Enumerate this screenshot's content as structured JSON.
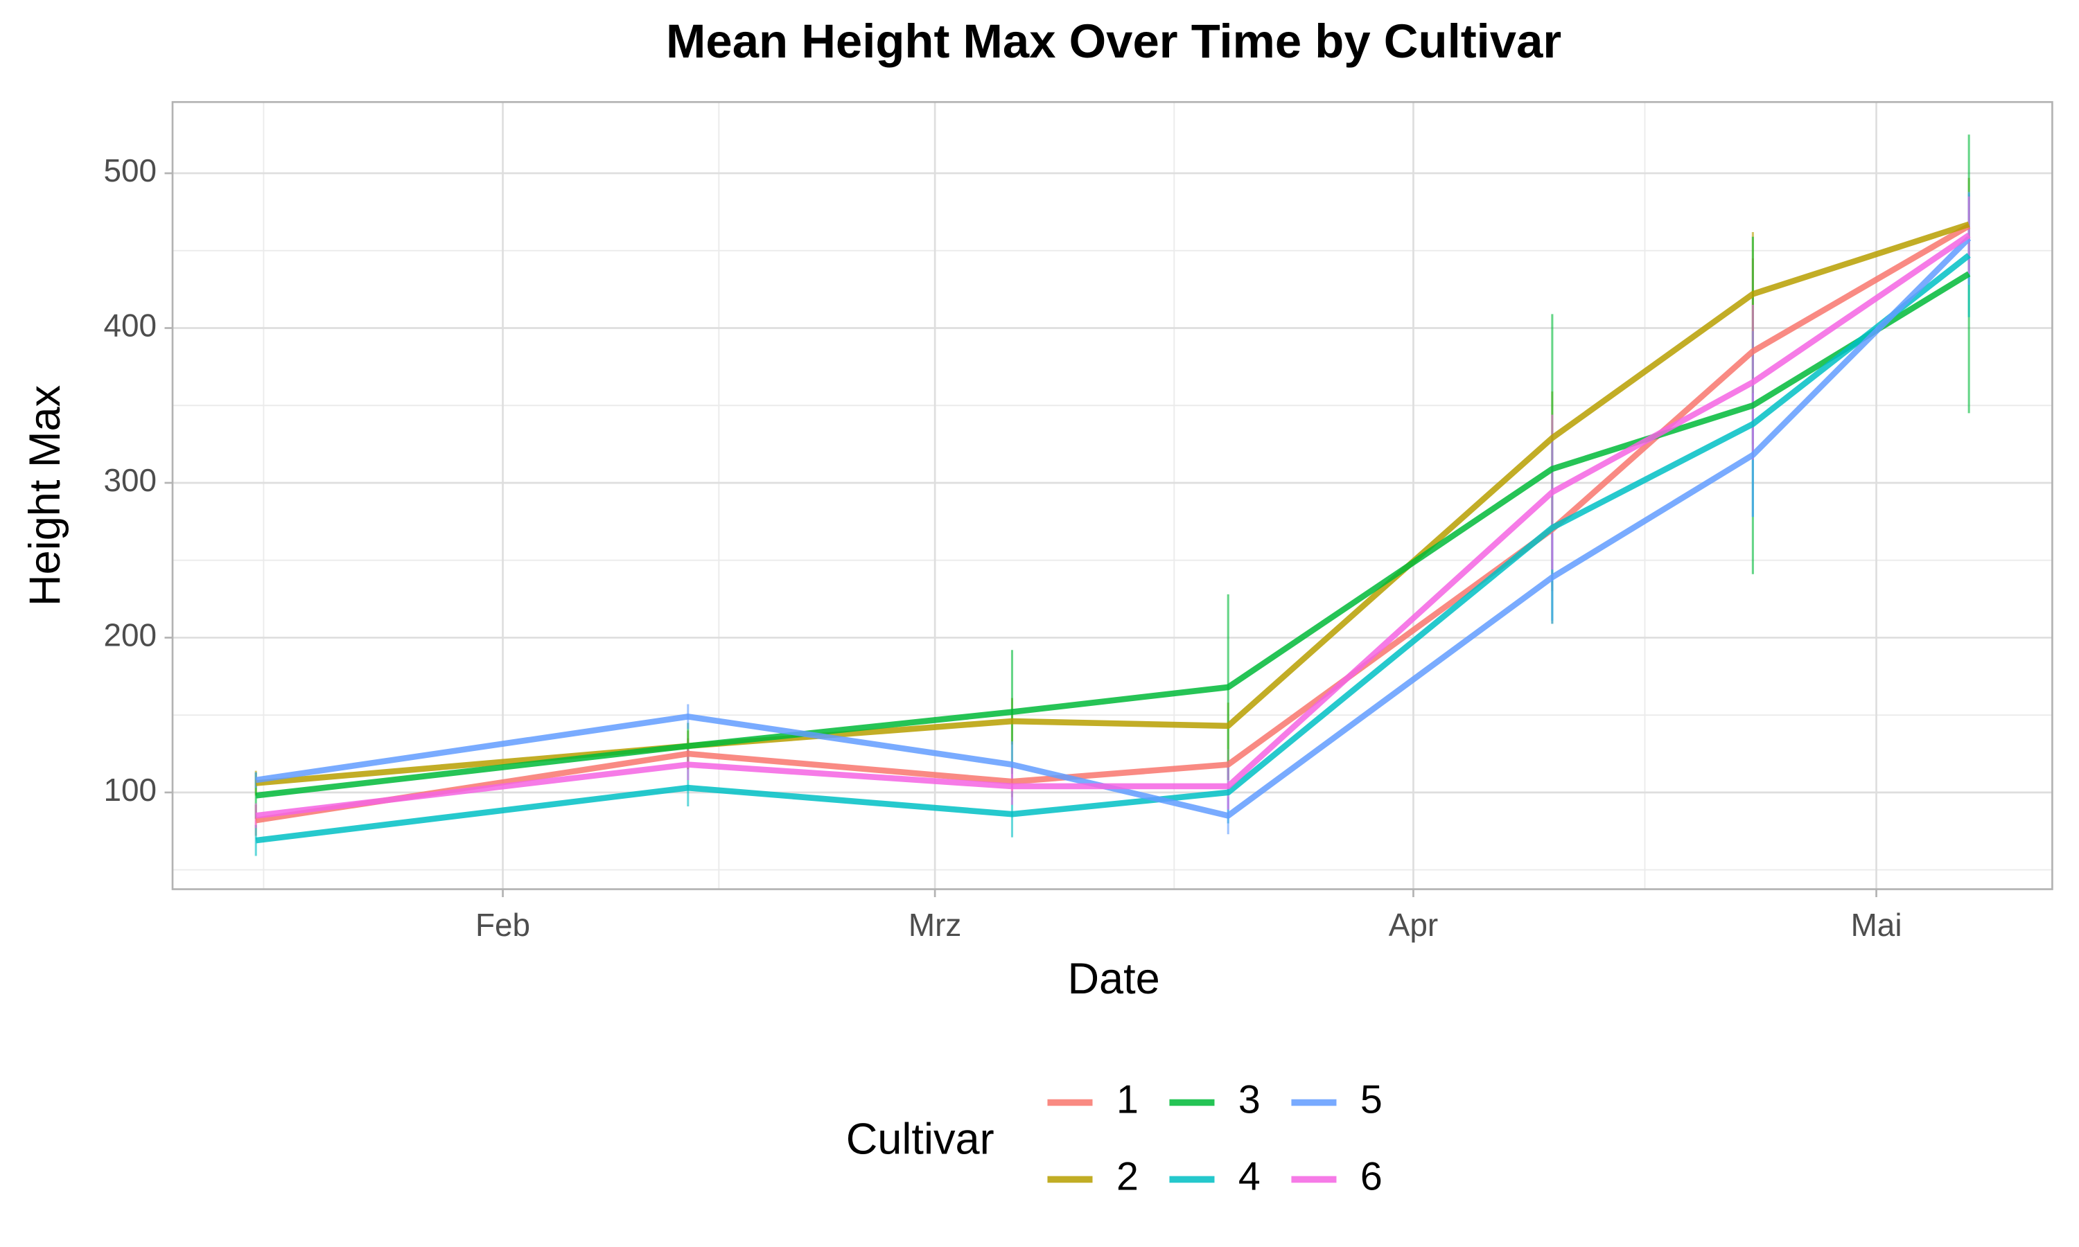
{
  "chart_data": {
    "type": "line",
    "title": "Mean Height Max Over Time by Cultivar",
    "x_label": "Date",
    "y_label": "Height Max",
    "legend_title": "Cultivar",
    "legend": "bottom",
    "grid": true,
    "x": [
      16,
      44,
      65,
      79,
      100,
      113,
      127
    ],
    "xlim": [
      10.6,
      132.4
    ],
    "xticks": [
      {
        "value": 32,
        "label": "Feb"
      },
      {
        "value": 60,
        "label": "Mrz"
      },
      {
        "value": 91,
        "label": "Apr"
      },
      {
        "value": 121,
        "label": "Mai"
      }
    ],
    "xminor": [
      16.5,
      46,
      75.5,
      106
    ],
    "ylim": [
      37.5,
      546
    ],
    "yticks": [
      100,
      200,
      300,
      400,
      500
    ],
    "yminor": [
      50,
      150,
      250,
      350,
      450
    ],
    "series": [
      {
        "name": "1",
        "color": "#F8766D",
        "values": [
          82,
          125,
          107,
          118,
          270,
          385,
          466
        ],
        "errors": [
          10,
          10,
          10,
          10,
          40,
          60,
          20
        ]
      },
      {
        "name": "2",
        "color": "#B79F00",
        "values": [
          106,
          130,
          146,
          143,
          329,
          422,
          467
        ],
        "errors": [
          8,
          10,
          15,
          15,
          30,
          40,
          30
        ]
      },
      {
        "name": "3",
        "color": "#00BA38",
        "values": [
          98,
          130,
          152,
          168,
          309,
          350,
          435
        ],
        "errors": [
          15,
          15,
          40,
          60,
          100,
          109,
          90
        ]
      },
      {
        "name": "4",
        "color": "#00BFC4",
        "values": [
          69,
          103,
          86,
          100,
          271,
          338,
          447
        ],
        "errors": [
          10,
          12,
          15,
          20,
          60,
          60,
          40
        ]
      },
      {
        "name": "5",
        "color": "#619CFF",
        "values": [
          108,
          149,
          118,
          85,
          239,
          318,
          458
        ],
        "errors": [
          5,
          8,
          15,
          12,
          30,
          40,
          30
        ]
      },
      {
        "name": "6",
        "color": "#F564E3",
        "values": [
          85,
          118,
          104,
          104,
          294,
          365,
          460
        ],
        "errors": [
          8,
          10,
          12,
          15,
          50,
          50,
          25
        ]
      }
    ]
  }
}
